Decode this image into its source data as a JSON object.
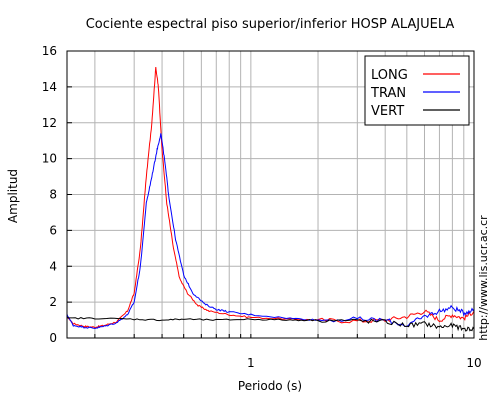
{
  "chart_data": {
    "type": "line",
    "title": "Cociente espectral piso superior/inferior  HOSP ALAJUELA",
    "xlabel": "Periodo (s)",
    "ylabel": "Amplitud",
    "x_scale": "log",
    "xlim": [
      0.15,
      10
    ],
    "ylim": [
      0,
      16
    ],
    "x_ticks": [
      {
        "value": 1,
        "label": "1"
      },
      {
        "value": 10,
        "label": "10"
      }
    ],
    "y_ticks": [
      0,
      2,
      4,
      6,
      8,
      10,
      12,
      14,
      16
    ],
    "grid": true,
    "legend_position": "top-right",
    "side_text": "http://www.lis.ucr.ac.cr",
    "series": [
      {
        "name": "LONG",
        "color": "#ff0000",
        "points": [
          [
            0.15,
            1.2
          ],
          [
            0.16,
            0.8
          ],
          [
            0.18,
            0.65
          ],
          [
            0.2,
            0.6
          ],
          [
            0.22,
            0.7
          ],
          [
            0.25,
            0.9
          ],
          [
            0.28,
            1.5
          ],
          [
            0.3,
            2.5
          ],
          [
            0.32,
            5
          ],
          [
            0.34,
            9
          ],
          [
            0.36,
            12
          ],
          [
            0.375,
            15.1
          ],
          [
            0.385,
            14
          ],
          [
            0.4,
            10.5
          ],
          [
            0.42,
            7.5
          ],
          [
            0.45,
            5
          ],
          [
            0.48,
            3.3
          ],
          [
            0.52,
            2.5
          ],
          [
            0.58,
            1.8
          ],
          [
            0.65,
            1.5
          ],
          [
            0.8,
            1.3
          ],
          [
            1,
            1.15
          ],
          [
            1.5,
            1.05
          ],
          [
            2,
            1.0
          ],
          [
            3,
            0.95
          ],
          [
            4,
            1.0
          ],
          [
            5,
            1.2
          ],
          [
            6,
            1.5
          ],
          [
            7,
            1.0
          ],
          [
            8,
            1.3
          ],
          [
            9,
            1.1
          ],
          [
            10,
            1.5
          ]
        ]
      },
      {
        "name": "TRAN",
        "color": "#0000ff",
        "points": [
          [
            0.15,
            1.3
          ],
          [
            0.16,
            0.7
          ],
          [
            0.18,
            0.6
          ],
          [
            0.2,
            0.55
          ],
          [
            0.22,
            0.65
          ],
          [
            0.25,
            0.85
          ],
          [
            0.28,
            1.3
          ],
          [
            0.3,
            2
          ],
          [
            0.32,
            4
          ],
          [
            0.34,
            7.5
          ],
          [
            0.36,
            9
          ],
          [
            0.38,
            10.5
          ],
          [
            0.395,
            11.4
          ],
          [
            0.41,
            10
          ],
          [
            0.43,
            7.8
          ],
          [
            0.46,
            5.5
          ],
          [
            0.5,
            3.5
          ],
          [
            0.55,
            2.5
          ],
          [
            0.62,
            1.9
          ],
          [
            0.7,
            1.6
          ],
          [
            0.8,
            1.45
          ],
          [
            1,
            1.3
          ],
          [
            1.5,
            1.1
          ],
          [
            2,
            1.0
          ],
          [
            3,
            1.05
          ],
          [
            4,
            1.0
          ],
          [
            5,
            0.7
          ],
          [
            6,
            1.2
          ],
          [
            7,
            1.5
          ],
          [
            8,
            1.7
          ],
          [
            9,
            1.4
          ],
          [
            10,
            1.6
          ]
        ]
      },
      {
        "name": "VERT",
        "color": "#000000",
        "points": [
          [
            0.15,
            1.1
          ],
          [
            0.2,
            1.1
          ],
          [
            0.3,
            1.05
          ],
          [
            0.4,
            1.0
          ],
          [
            0.5,
            1.05
          ],
          [
            0.7,
            1.0
          ],
          [
            1,
            1.05
          ],
          [
            1.5,
            1.0
          ],
          [
            2,
            1.0
          ],
          [
            3,
            0.95
          ],
          [
            4,
            0.9
          ],
          [
            5,
            0.7
          ],
          [
            6,
            0.8
          ],
          [
            7,
            0.6
          ],
          [
            8,
            0.7
          ],
          [
            9,
            0.5
          ],
          [
            10,
            0.5
          ]
        ]
      }
    ]
  }
}
